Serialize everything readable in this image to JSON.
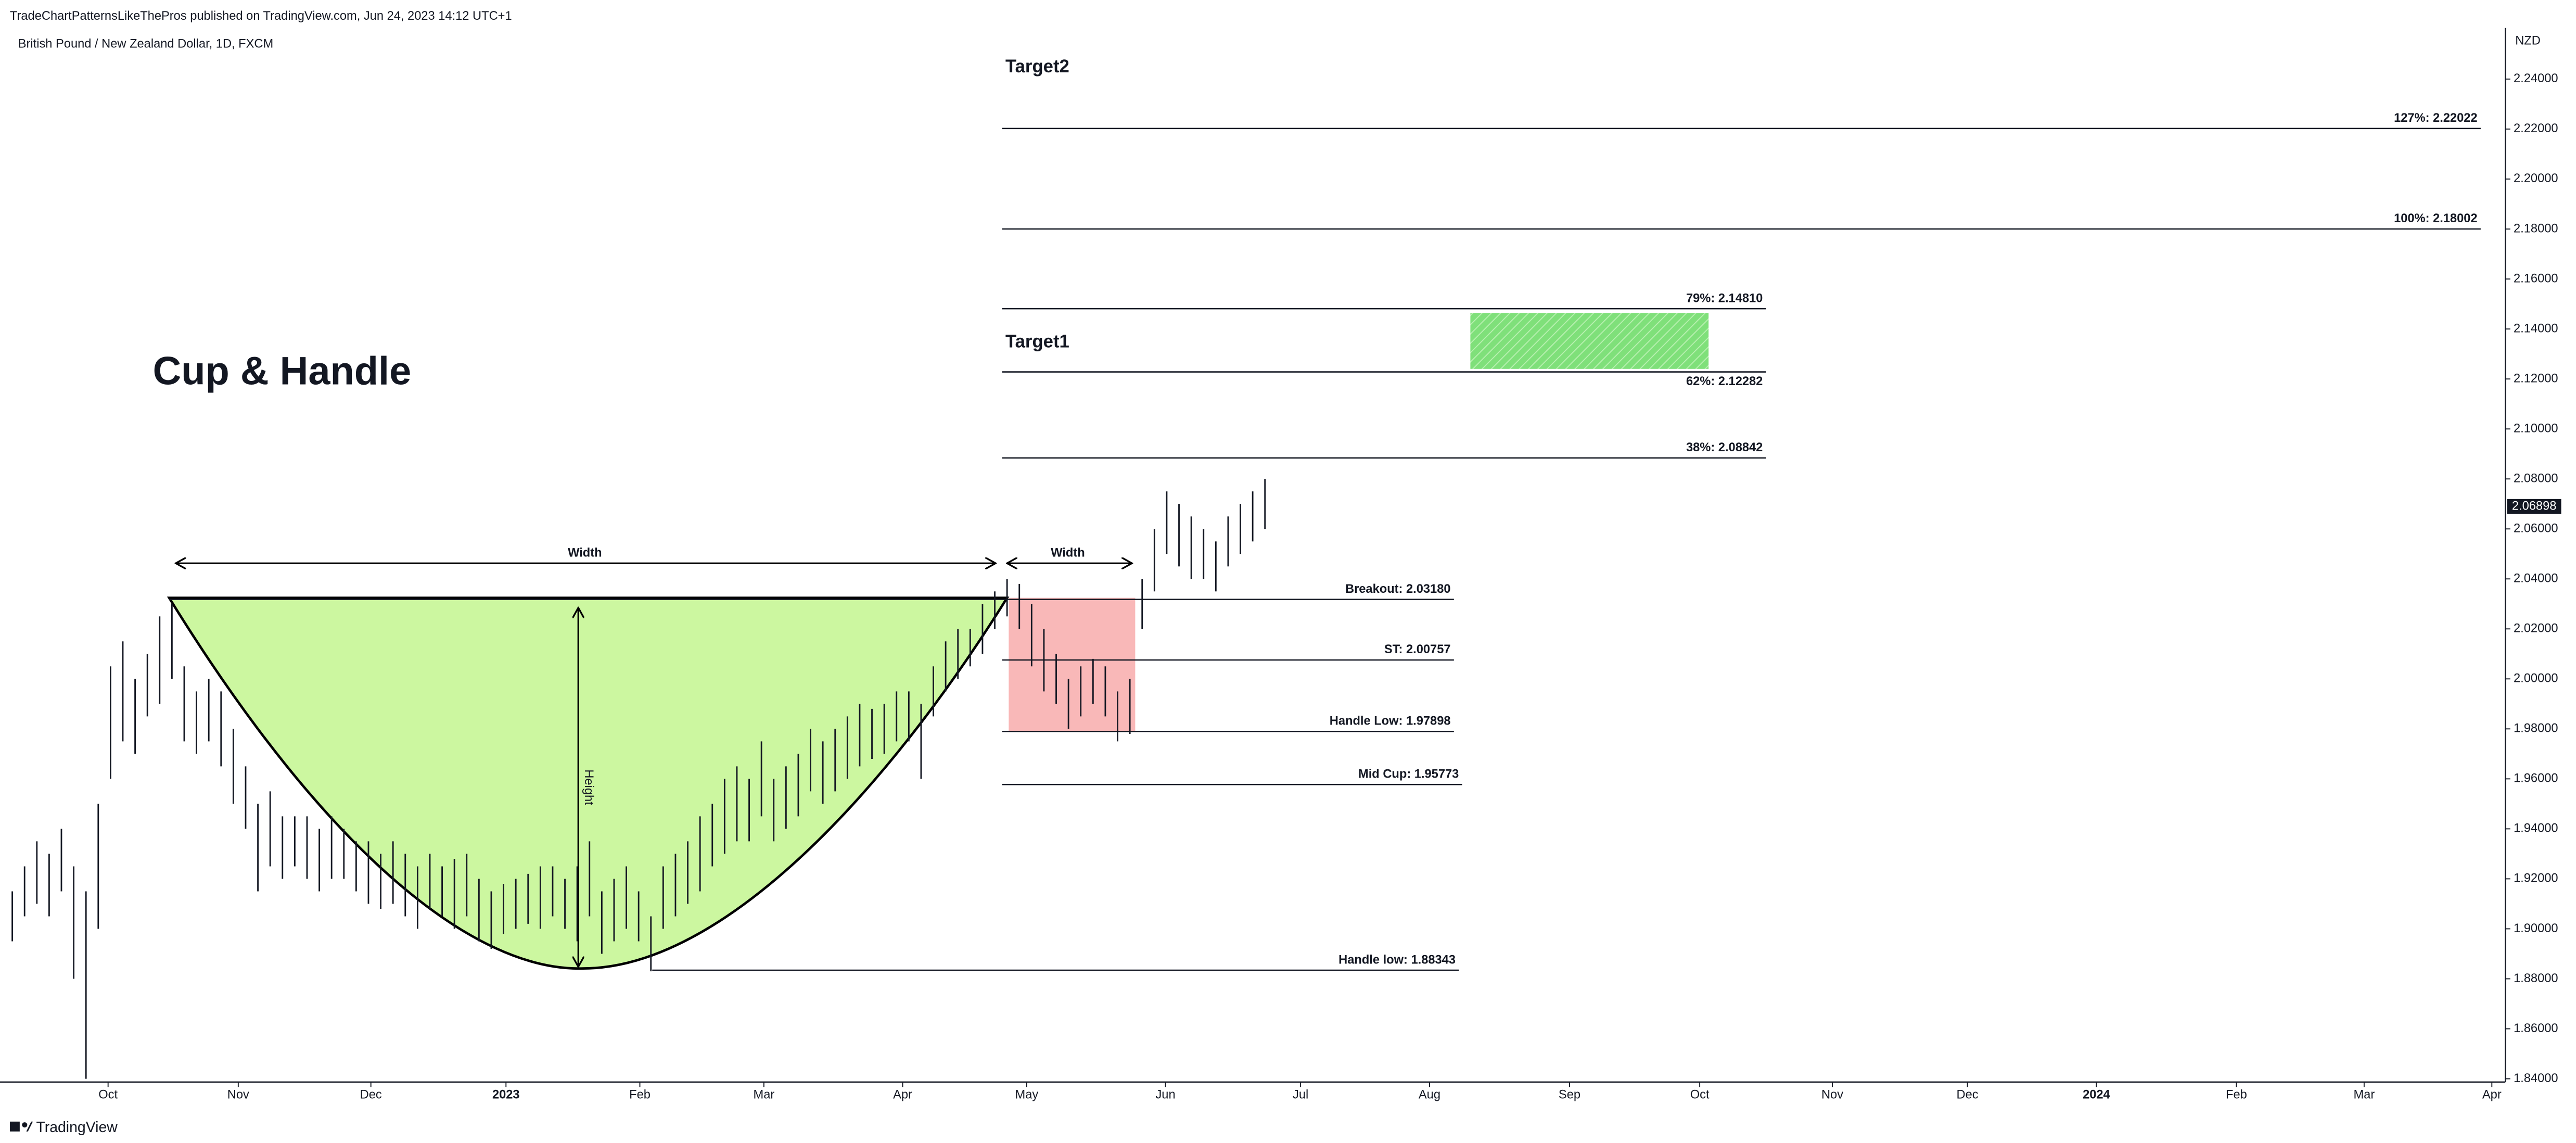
{
  "header": "TradeChartPatternsLikeThePros published on TradingView.com, Jun 24, 2023 14:12 UTC+1",
  "brand": "TradingView",
  "chart_data": {
    "type": "ohlc",
    "title": "British Pound / New Zealand Dollar, 1D, FXCM",
    "currency": "NZD",
    "annotation": "Cup & Handle",
    "targets": [
      "Target2",
      "Target1"
    ],
    "width_labels": [
      "Width",
      "Width"
    ],
    "height_label": "Height",
    "last_price": 2.06898,
    "color": "#131722",
    "high": [
      1.915,
      1.925,
      1.935,
      1.93,
      1.94,
      1.925,
      1.915,
      1.95,
      2.005,
      2.015,
      2.0,
      2.01,
      2.025,
      2.03,
      2.005,
      1.995,
      2.0,
      1.995,
      1.98,
      1.965,
      1.95,
      1.955,
      1.945,
      1.945,
      1.945,
      1.94,
      1.945,
      1.94,
      1.935,
      1.935,
      1.93,
      1.935,
      1.93,
      1.925,
      1.93,
      1.925,
      1.928,
      1.93,
      1.92,
      1.915,
      1.918,
      1.92,
      1.922,
      1.925,
      1.925,
      1.92,
      1.925,
      1.935,
      1.915,
      1.92,
      1.925,
      1.915,
      1.905,
      1.925,
      1.93,
      1.935,
      1.945,
      1.95,
      1.96,
      1.965,
      1.96,
      1.975,
      1.96,
      1.965,
      1.97,
      1.98,
      1.975,
      1.98,
      1.985,
      1.99,
      1.988,
      1.99,
      1.995,
      1.995,
      1.99,
      2.005,
      2.015,
      2.02,
      2.02,
      2.03,
      2.035,
      2.04,
      2.038,
      2.03,
      2.02,
      2.01,
      2.0,
      2.005,
      2.008,
      2.005,
      1.995,
      2.0,
      2.04,
      2.06,
      2.075,
      2.07,
      2.065,
      2.06,
      2.055,
      2.065,
      2.07,
      2.075,
      2.08
    ],
    "low": [
      1.895,
      1.905,
      1.91,
      1.905,
      1.915,
      1.88,
      1.84,
      1.9,
      1.96,
      1.975,
      1.97,
      1.985,
      1.99,
      2.0,
      1.975,
      1.97,
      1.975,
      1.965,
      1.95,
      1.94,
      1.915,
      1.925,
      1.92,
      1.925,
      1.92,
      1.915,
      1.92,
      1.92,
      1.915,
      1.91,
      1.908,
      1.91,
      1.905,
      1.9,
      1.908,
      1.905,
      1.9,
      1.905,
      1.895,
      1.892,
      1.898,
      1.9,
      1.902,
      1.9,
      1.905,
      1.9,
      1.895,
      1.905,
      1.89,
      1.895,
      1.9,
      1.895,
      1.883,
      1.9,
      1.905,
      1.91,
      1.915,
      1.925,
      1.93,
      1.935,
      1.935,
      1.945,
      1.935,
      1.94,
      1.945,
      1.955,
      1.95,
      1.955,
      1.96,
      1.965,
      1.968,
      1.97,
      1.975,
      1.975,
      1.96,
      1.985,
      1.995,
      2.0,
      2.005,
      2.01,
      2.02,
      2.025,
      2.02,
      2.005,
      1.995,
      1.99,
      1.98,
      1.985,
      1.99,
      1.985,
      1.975,
      1.978,
      2.02,
      2.035,
      2.05,
      2.045,
      2.04,
      2.04,
      2.035,
      2.045,
      2.05,
      2.055,
      2.06
    ],
    "xlim": [
      -1,
      203
    ],
    "xticks": [
      {
        "value": 7.8,
        "label": "Oct"
      },
      {
        "value": 18.4,
        "label": "Nov"
      },
      {
        "value": 29.2,
        "label": "Dec"
      },
      {
        "value": 40.2,
        "label": "2023"
      },
      {
        "value": 51.1,
        "label": "Feb"
      },
      {
        "value": 61.2,
        "label": "Mar"
      },
      {
        "value": 72.5,
        "label": "Apr"
      },
      {
        "value": 82.6,
        "label": "May"
      },
      {
        "value": 93.9,
        "label": "Jun"
      },
      {
        "value": 104.9,
        "label": "Jul"
      },
      {
        "value": 115.4,
        "label": "Aug"
      },
      {
        "value": 126.8,
        "label": "Sep"
      },
      {
        "value": 137.4,
        "label": "Oct"
      },
      {
        "value": 148.2,
        "label": "Nov"
      },
      {
        "value": 159.2,
        "label": "Dec"
      },
      {
        "value": 169.7,
        "label": "2024"
      },
      {
        "value": 181.1,
        "label": "Feb"
      },
      {
        "value": 191.5,
        "label": "Mar"
      },
      {
        "value": 201.9,
        "label": "Apr"
      }
    ],
    "ylim": [
      1.84,
      2.26
    ],
    "yticks": [
      {
        "value": 2.24,
        "label": "2.24000"
      },
      {
        "value": 2.22,
        "label": "2.22000"
      },
      {
        "value": 2.2,
        "label": "2.20000"
      },
      {
        "value": 2.18,
        "label": "2.18000"
      },
      {
        "value": 2.16,
        "label": "2.16000"
      },
      {
        "value": 2.14,
        "label": "2.14000"
      },
      {
        "value": 2.12,
        "label": "2.12000"
      },
      {
        "value": 2.1,
        "label": "2.10000"
      },
      {
        "value": 2.08,
        "label": "2.08000"
      },
      {
        "value": 2.06,
        "label": "2.06000"
      },
      {
        "value": 2.04,
        "label": "2.04000"
      },
      {
        "value": 2.02,
        "label": "2.02000"
      },
      {
        "value": 2.0,
        "label": "2.00000"
      },
      {
        "value": 1.98,
        "label": "1.98000"
      },
      {
        "value": 1.96,
        "label": "1.96000"
      },
      {
        "value": 1.94,
        "label": "1.94000"
      },
      {
        "value": 1.92,
        "label": "1.92000"
      },
      {
        "value": 1.9,
        "label": "1.90000"
      },
      {
        "value": 1.88,
        "label": "1.88000"
      },
      {
        "value": 1.86,
        "label": "1.86000"
      },
      {
        "value": 1.84,
        "label": "1.84000"
      }
    ],
    "levels": [
      {
        "label": "127%: 2.22022",
        "value": 2.22022
      },
      {
        "label": "100%: 2.18002",
        "value": 2.18002
      },
      {
        "label": "79%: 2.14810",
        "value": 2.1481
      },
      {
        "label": "62%: 2.12282",
        "value": 2.12282
      },
      {
        "label": "38%: 2.08842",
        "value": 2.08842
      },
      {
        "label": "Breakout: 2.03180",
        "value": 2.0318
      },
      {
        "label": "ST: 2.00757",
        "value": 2.00757
      },
      {
        "label": "Handle Low: 1.97898",
        "value": 1.97898
      },
      {
        "label": "Mid Cup: 1.95773",
        "value": 1.95773
      },
      {
        "label": "Handle low: 1.88343",
        "value": 1.88343
      }
    ]
  }
}
